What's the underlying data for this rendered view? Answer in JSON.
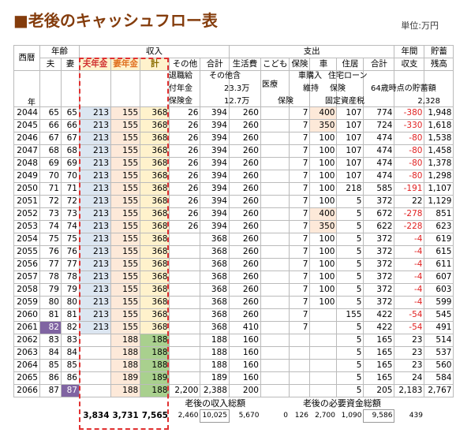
{
  "header": {
    "title": "■老後のキャッシュフロー表",
    "unit": "単位:万円"
  },
  "table": {
    "group_headers": [
      "西暦",
      "年齢",
      "収入",
      "支出",
      "年間",
      "貯蓄"
    ],
    "column_headers": [
      "夫",
      "妻",
      "夫年金",
      "妻年金",
      "計",
      "その他",
      "合計",
      "生活費",
      "こども",
      "保険",
      "車",
      "住居",
      "合計",
      "収支",
      "残高"
    ],
    "notes": [
      "退職給",
      "付年金",
      "保険金",
      "その他含",
      "23.3万",
      "12.7万",
      "医療",
      "保険",
      "車購入",
      "維持",
      "住宅ローン",
      "保険",
      "固定資産税",
      "64歳時点の貯蓄額",
      "2,328",
      "年"
    ],
    "rows": [
      [
        "2044",
        "65",
        "65",
        "213",
        "155",
        "368",
        "26",
        "394",
        "260",
        null,
        "7",
        "400",
        "107",
        "774",
        "-380",
        "1,948"
      ],
      [
        "2045",
        "66",
        "66",
        "213",
        "155",
        "368",
        "26",
        "394",
        "260",
        null,
        "7",
        "350",
        "107",
        "724",
        "-330",
        "1,618"
      ],
      [
        "2046",
        "67",
        "67",
        "213",
        "155",
        "368",
        "26",
        "394",
        "260",
        null,
        "7",
        "100",
        "107",
        "474",
        "-80",
        "1,538"
      ],
      [
        "2047",
        "68",
        "68",
        "213",
        "155",
        "368",
        "26",
        "394",
        "260",
        null,
        "7",
        "100",
        "107",
        "474",
        "-80",
        "1,458"
      ],
      [
        "2048",
        "69",
        "69",
        "213",
        "155",
        "368",
        "26",
        "394",
        "260",
        null,
        "7",
        "100",
        "107",
        "474",
        "-80",
        "1,378"
      ],
      [
        "2049",
        "70",
        "70",
        "213",
        "155",
        "368",
        "26",
        "394",
        "260",
        null,
        "7",
        "100",
        "107",
        "474",
        "-80",
        "1,298"
      ],
      [
        "2050",
        "71",
        "71",
        "213",
        "155",
        "368",
        "26",
        "394",
        "260",
        null,
        "7",
        "100",
        "218",
        "585",
        "-191",
        "1,107"
      ],
      [
        "2051",
        "72",
        "72",
        "213",
        "155",
        "368",
        "26",
        "394",
        "260",
        null,
        "7",
        "100",
        "5",
        "372",
        "22",
        "1,129"
      ],
      [
        "2052",
        "73",
        "73",
        "213",
        "155",
        "368",
        "26",
        "394",
        "260",
        null,
        "7",
        "400",
        "5",
        "672",
        "-278",
        "851"
      ],
      [
        "2053",
        "74",
        "74",
        "213",
        "155",
        "368",
        "26",
        "394",
        "260",
        null,
        "7",
        "350",
        "5",
        "622",
        "-228",
        "623"
      ],
      [
        "2054",
        "75",
        "75",
        "213",
        "155",
        "368",
        null,
        "368",
        "260",
        null,
        "7",
        "100",
        "5",
        "372",
        "-4",
        "619"
      ],
      [
        "2055",
        "76",
        "76",
        "213",
        "155",
        "368",
        null,
        "368",
        "260",
        null,
        "7",
        "100",
        "5",
        "372",
        "-4",
        "615"
      ],
      [
        "2056",
        "77",
        "77",
        "213",
        "155",
        "368",
        null,
        "368",
        "260",
        null,
        "7",
        "100",
        "5",
        "372",
        "-4",
        "611"
      ],
      [
        "2057",
        "78",
        "78",
        "213",
        "155",
        "368",
        null,
        "368",
        "260",
        null,
        "7",
        "100",
        "5",
        "372",
        "-4",
        "607"
      ],
      [
        "2058",
        "79",
        "79",
        "213",
        "155",
        "368",
        null,
        "368",
        "260",
        null,
        "7",
        "100",
        "5",
        "372",
        "-4",
        "603"
      ],
      [
        "2059",
        "80",
        "80",
        "213",
        "155",
        "368",
        null,
        "368",
        "260",
        null,
        "7",
        "100",
        "5",
        "372",
        "-4",
        "599"
      ],
      [
        "2060",
        "81",
        "81",
        "213",
        "155",
        "368",
        null,
        "368",
        "260",
        null,
        "7",
        null,
        "155",
        "422",
        "-54",
        "545"
      ],
      [
        "2061",
        "82",
        "82",
        "213",
        "155",
        "368",
        null,
        "368",
        "410",
        null,
        "7",
        null,
        "5",
        "422",
        "-54",
        "491"
      ],
      [
        "2062",
        "83",
        "83",
        null,
        "188",
        "188",
        null,
        "188",
        "160",
        null,
        null,
        null,
        "5",
        "165",
        "23",
        "514"
      ],
      [
        "2063",
        "84",
        "84",
        null,
        "188",
        "188",
        null,
        "188",
        "160",
        null,
        null,
        null,
        "5",
        "165",
        "23",
        "537"
      ],
      [
        "2064",
        "85",
        "85",
        null,
        "188",
        "188",
        null,
        "188",
        "160",
        null,
        null,
        null,
        "5",
        "165",
        "23",
        "560"
      ],
      [
        "2065",
        "86",
        "86",
        null,
        "189",
        "189",
        null,
        "189",
        "160",
        null,
        null,
        null,
        "5",
        "165",
        "24",
        "584"
      ],
      [
        "2066",
        "87",
        "87",
        null,
        "188",
        "188",
        "2,200",
        "2,388",
        "200",
        null,
        null,
        null,
        "5",
        "205",
        "2,183",
        "2,767"
      ]
    ],
    "footer_labels": [
      "老後の収入総額",
      "老後の必要資金総額"
    ],
    "totals": [
      null,
      null,
      null,
      "3,834",
      "3,731",
      "7,565",
      "2,460",
      "10,025",
      "5,670",
      "0",
      "126",
      "2,700",
      "1,090",
      "9,586",
      "439",
      null
    ]
  }
}
